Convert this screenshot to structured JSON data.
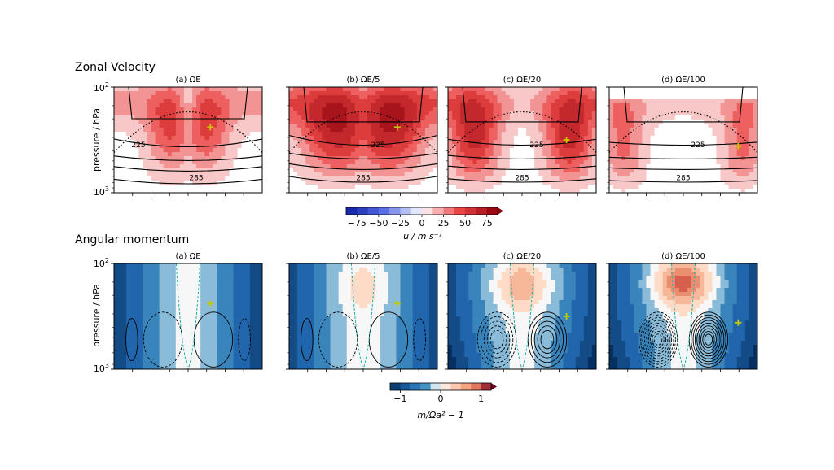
{
  "rows": [
    {
      "title": "Zonal Velocity",
      "ylabel": "pressure / hPa",
      "yticks": [
        {
          "base": "10",
          "exp": "2"
        },
        {
          "base": "10",
          "exp": "3"
        }
      ],
      "colorbar": {
        "ticks": [
          "−75",
          "−50",
          "−25",
          "0",
          "25",
          "50",
          "75"
        ],
        "label": "u / m s⁻¹",
        "range": [
          -87.5,
          87.5
        ]
      }
    },
    {
      "title": "Angular momentum",
      "ylabel": "pressure / hPa",
      "yticks": [
        {
          "base": "10",
          "exp": "2"
        },
        {
          "base": "10",
          "exp": "3"
        }
      ],
      "colorbar": {
        "ticks": [
          "−1",
          "0",
          "1"
        ],
        "label": "m/Ωa² − 1",
        "range": [
          -1.25,
          1.25
        ]
      }
    }
  ],
  "panels": [
    {
      "title": "(a) ΩE"
    },
    {
      "title": "(b) ΩE/5"
    },
    {
      "title": "(c) ΩE/20"
    },
    {
      "title": "(d) ΩE/100"
    }
  ],
  "contour_labels": [
    "225",
    "285"
  ],
  "chart_data": [
    {
      "type": "heatmap",
      "title": "Zonal Velocity",
      "ylabel": "pressure / hPa",
      "y_scale": "log",
      "ylim": [
        1000,
        100
      ],
      "colorbar_label": "u / m s⁻¹",
      "colorbar_ticks": [
        -75,
        -50,
        -25,
        0,
        25,
        50,
        75
      ],
      "panels": [
        {
          "name": "(a) ΩE",
          "jet_max": 45,
          "jet_lat": 0.62,
          "jet_p": 240,
          "min": -15,
          "width": 0.2
        },
        {
          "name": "(b) ΩE/5",
          "jet_max": 65,
          "jet_lat": 0.67,
          "jet_p": 250,
          "min": 0,
          "width": 0.3
        },
        {
          "name": "(c) ΩE/20",
          "jet_max": 60,
          "jet_lat": 0.82,
          "jet_p": 300,
          "min": 0,
          "width": 0.2
        },
        {
          "name": "(d) ΩE/100",
          "jet_max": 35,
          "jet_lat": 0.9,
          "jet_p": 350,
          "min": 0,
          "width": 0.16
        }
      ],
      "contours": [
        "225",
        "285"
      ]
    },
    {
      "type": "heatmap",
      "title": "Angular momentum",
      "ylabel": "pressure / hPa",
      "y_scale": "log",
      "ylim": [
        1000,
        100
      ],
      "colorbar_label": "m/Ωa² − 1",
      "colorbar_ticks": [
        -1,
        0,
        1
      ],
      "panels": [
        {
          "name": "(a) ΩE",
          "max": 0.0,
          "blob_p": 180,
          "edge_min": -1.0
        },
        {
          "name": "(b) ΩE/5",
          "max": 0.3,
          "blob_p": 170,
          "edge_min": -0.9
        },
        {
          "name": "(c) ΩE/20",
          "max": 0.6,
          "blob_p": 160,
          "edge_min": -0.8
        },
        {
          "name": "(d) ΩE/100",
          "max": 1.0,
          "blob_p": 150,
          "edge_min": -1.0
        }
      ]
    }
  ],
  "colors": {
    "marker": "#c8c800",
    "contour": "#000000",
    "dashed_cyan": "#20b0b0"
  }
}
